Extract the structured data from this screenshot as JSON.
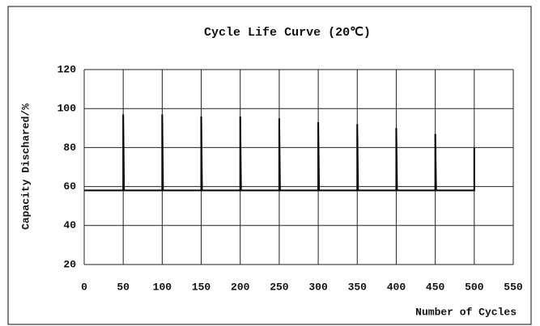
{
  "chart_data": {
    "type": "line",
    "title": "Cycle Life Curve (20℃)",
    "x_label": "Number of Cycles",
    "y_label": "Capacity Dischared/%",
    "x": [
      0,
      50,
      50,
      51,
      100,
      100,
      101,
      150,
      150,
      151,
      200,
      200,
      201,
      250,
      250,
      251,
      300,
      300,
      301,
      350,
      350,
      351,
      400,
      400,
      401,
      450,
      450,
      451,
      500,
      500
    ],
    "values": [
      58,
      58,
      97,
      58,
      58,
      97,
      58,
      58,
      96,
      58,
      58,
      96,
      58,
      58,
      95,
      58,
      58,
      93,
      58,
      58,
      92,
      58,
      58,
      90,
      58,
      58,
      87,
      58,
      58,
      80
    ],
    "color": "#000000",
    "xlim": [
      0,
      550
    ],
    "xticks": [
      0,
      50,
      100,
      150,
      200,
      250,
      300,
      350,
      400,
      450,
      500,
      550
    ],
    "ylim": [
      20,
      120
    ],
    "yticks": [
      20,
      40,
      60,
      80,
      100,
      120
    ],
    "grid": true
  }
}
